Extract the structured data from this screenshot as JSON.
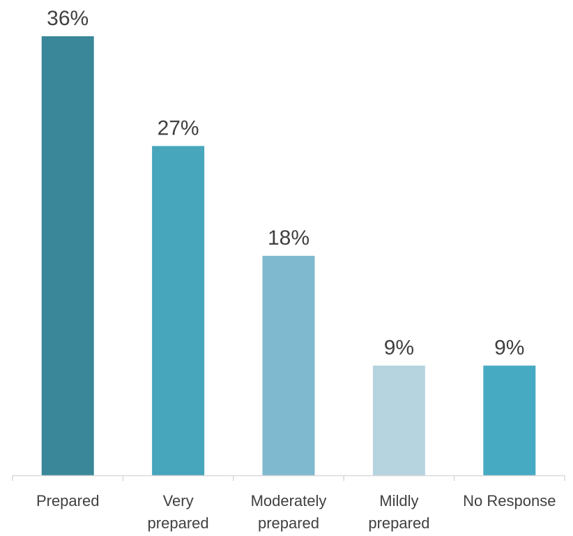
{
  "chart_data": {
    "type": "bar",
    "categories": [
      [
        "Prepared"
      ],
      [
        "Very",
        "prepared"
      ],
      [
        "Moderately",
        "prepared"
      ],
      [
        "Mildly",
        "prepared"
      ],
      [
        "No Response"
      ]
    ],
    "values": [
      36,
      27,
      18,
      9,
      9
    ],
    "data_labels": [
      "36%",
      "27%",
      "18%",
      "9%",
      "9%"
    ],
    "bar_colors": [
      "#3a8799",
      "#47a5bc",
      "#7fb9cf",
      "#b5d4df",
      "#47aac3"
    ],
    "axis_color": "#d9d9d9",
    "text_color": "#404040",
    "ylim": [
      0,
      36
    ],
    "grid": false,
    "legend": "none"
  }
}
